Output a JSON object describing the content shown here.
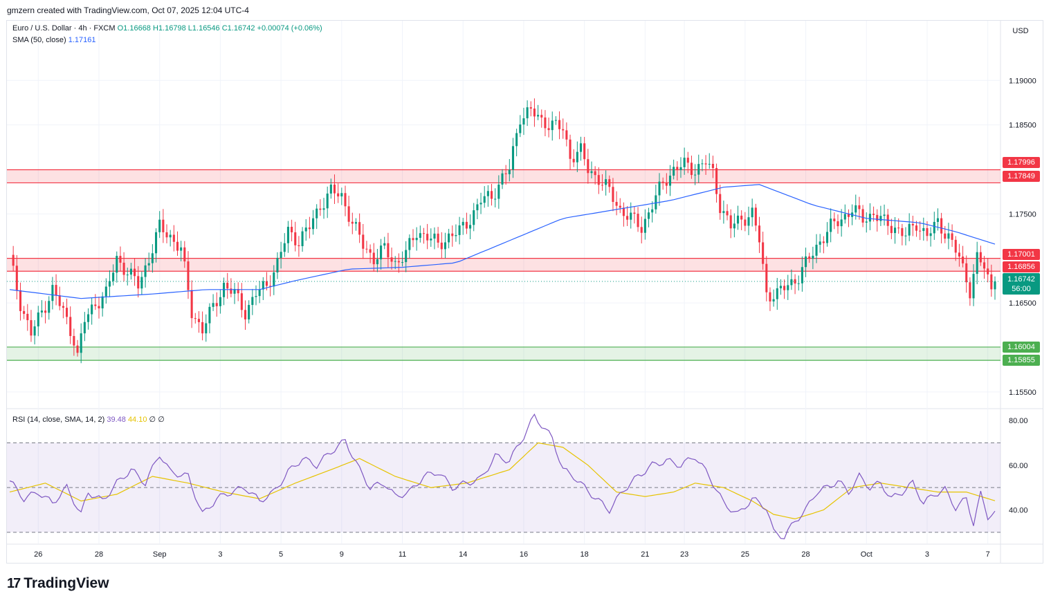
{
  "credit": "gmzern created with TradingView.com, Oct 07, 2025 12:04 UTC-4",
  "legend": {
    "symbol": "Euro / U.S. Dollar · 4h · FXCM",
    "open": "O1.16668",
    "high": "H1.16798",
    "low": "L1.16546",
    "close": "C1.16742",
    "change": "+0.00074 (+0.06%)",
    "sma_label": "SMA (50, close)",
    "sma_value": "1.17161",
    "rsi_label": "RSI (14, close, SMA, 14, 2)",
    "rsi_value": "39.48",
    "rsi_sma_value": "44.10",
    "rsi_extra1": "∅",
    "rsi_extra2": "∅"
  },
  "currency": "USD",
  "brand": {
    "logo": "17",
    "name": "TradingView"
  },
  "price_tags": {
    "r1_top": "1.17996",
    "r1_bot": "1.17849",
    "r2_top": "1.17001",
    "r2_bot": "1.16856",
    "last_price": "1.16742",
    "countdown": "56:00",
    "s_top": "1.16004",
    "s_bot": "1.15855"
  },
  "colors": {
    "up": "#089981",
    "down": "#f23645",
    "sma": "#2962ff",
    "rsi": "#7e57c2",
    "rsi_sma": "#e6c300",
    "resistance_zone": "#f23645",
    "support_zone": "#4caf50"
  },
  "chart_data": {
    "type": "candlestick",
    "symbol": "EURUSD",
    "timeframe": "4h",
    "y_axis": {
      "ticks": [
        "1.19000",
        "1.18500",
        "1.17500",
        "1.16500",
        "1.15500"
      ],
      "tick_values": [
        1.19,
        1.185,
        1.175,
        1.165,
        1.155
      ],
      "range": [
        1.1532,
        1.1967
      ]
    },
    "x_axis": {
      "labels": [
        "26",
        "28",
        "Sep",
        "3",
        "5",
        "9",
        "11",
        "14",
        "16",
        "18",
        "21",
        "23",
        "25",
        "28",
        "Oct",
        "3",
        "7"
      ],
      "label_bar_index": [
        8,
        25,
        42,
        59,
        76,
        93,
        110,
        127,
        144,
        161,
        178,
        189,
        206,
        223,
        240,
        257,
        274
      ],
      "bars_total": 277
    },
    "zones": [
      {
        "name": "resistance-upper",
        "top": 1.17996,
        "bottom": 1.17849,
        "color": "red"
      },
      {
        "name": "resistance-lower",
        "top": 1.17001,
        "bottom": 1.16856,
        "color": "red"
      },
      {
        "name": "support",
        "top": 1.16004,
        "bottom": 1.15855,
        "color": "green"
      }
    ],
    "last_price": 1.16742,
    "close_series_approx": [
      [
        0,
        1.17
      ],
      [
        3,
        1.165
      ],
      [
        6,
        1.1615
      ],
      [
        9,
        1.164
      ],
      [
        12,
        1.1665
      ],
      [
        15,
        1.164
      ],
      [
        18,
        1.161
      ],
      [
        19,
        1.159
      ],
      [
        21,
        1.163
      ],
      [
        24,
        1.165
      ],
      [
        27,
        1.166
      ],
      [
        30,
        1.17
      ],
      [
        33,
        1.1685
      ],
      [
        36,
        1.167
      ],
      [
        39,
        1.17
      ],
      [
        42,
        1.1735
      ],
      [
        45,
        1.1725
      ],
      [
        48,
        1.171
      ],
      [
        51,
        1.164
      ],
      [
        54,
        1.162
      ],
      [
        57,
        1.1645
      ],
      [
        60,
        1.167
      ],
      [
        63,
        1.166
      ],
      [
        66,
        1.164
      ],
      [
        69,
        1.166
      ],
      [
        72,
        1.167
      ],
      [
        75,
        1.1695
      ],
      [
        78,
        1.173
      ],
      [
        81,
        1.172
      ],
      [
        84,
        1.1735
      ],
      [
        87,
        1.176
      ],
      [
        90,
        1.1775
      ],
      [
        93,
        1.177
      ],
      [
        96,
        1.174
      ],
      [
        99,
        1.1715
      ],
      [
        102,
        1.17
      ],
      [
        105,
        1.171
      ],
      [
        108,
        1.1695
      ],
      [
        111,
        1.1705
      ],
      [
        114,
        1.173
      ],
      [
        117,
        1.1725
      ],
      [
        120,
        1.1715
      ],
      [
        123,
        1.1725
      ],
      [
        126,
        1.173
      ],
      [
        129,
        1.1745
      ],
      [
        132,
        1.1765
      ],
      [
        135,
        1.177
      ],
      [
        138,
        1.179
      ],
      [
        140,
        1.18
      ],
      [
        143,
        1.186
      ],
      [
        146,
        1.1865
      ],
      [
        149,
        1.1855
      ],
      [
        152,
        1.185
      ],
      [
        155,
        1.1845
      ],
      [
        157,
        1.1815
      ],
      [
        160,
        1.182
      ],
      [
        162,
        1.18
      ],
      [
        165,
        1.179
      ],
      [
        168,
        1.1775
      ],
      [
        171,
        1.1755
      ],
      [
        174,
        1.1745
      ],
      [
        177,
        1.1735
      ],
      [
        180,
        1.176
      ],
      [
        183,
        1.1785
      ],
      [
        186,
        1.18
      ],
      [
        189,
        1.1805
      ],
      [
        192,
        1.18
      ],
      [
        195,
        1.1808
      ],
      [
        197,
        1.1795
      ],
      [
        199,
        1.176
      ],
      [
        202,
        1.1735
      ],
      [
        205,
        1.1745
      ],
      [
        208,
        1.175
      ],
      [
        210,
        1.172
      ],
      [
        212,
        1.166
      ],
      [
        215,
        1.166
      ],
      [
        218,
        1.167
      ],
      [
        221,
        1.168
      ],
      [
        224,
        1.17
      ],
      [
        227,
        1.172
      ],
      [
        230,
        1.1735
      ],
      [
        233,
        1.1745
      ],
      [
        236,
        1.1755
      ],
      [
        239,
        1.1745
      ],
      [
        242,
        1.175
      ],
      [
        245,
        1.174
      ],
      [
        248,
        1.1735
      ],
      [
        251,
        1.1725
      ],
      [
        254,
        1.174
      ],
      [
        257,
        1.1725
      ],
      [
        260,
        1.174
      ],
      [
        263,
        1.1725
      ],
      [
        266,
        1.17
      ],
      [
        269,
        1.1665
      ],
      [
        271,
        1.17
      ],
      [
        273,
        1.169
      ],
      [
        275,
        1.1665
      ],
      [
        276,
        1.16742
      ]
    ],
    "sma_series_approx": [
      [
        0,
        1.1665
      ],
      [
        20,
        1.1655
      ],
      [
        40,
        1.166
      ],
      [
        55,
        1.1665
      ],
      [
        70,
        1.1665
      ],
      [
        80,
        1.1675
      ],
      [
        95,
        1.1688
      ],
      [
        110,
        1.169
      ],
      [
        125,
        1.1695
      ],
      [
        140,
        1.172
      ],
      [
        155,
        1.1745
      ],
      [
        170,
        1.1755
      ],
      [
        185,
        1.1765
      ],
      [
        200,
        1.178
      ],
      [
        210,
        1.1783
      ],
      [
        225,
        1.176
      ],
      [
        240,
        1.1745
      ],
      [
        255,
        1.174
      ],
      [
        265,
        1.173
      ],
      [
        276,
        1.1716
      ]
    ],
    "rsi": {
      "y_ticks": [
        "80.00",
        "60.00",
        "40.00"
      ],
      "tick_values": [
        80,
        60,
        40
      ],
      "range": [
        25,
        85
      ],
      "bands": {
        "upper": 70,
        "middle": 50,
        "lower": 30
      },
      "rsi_series_approx": [
        [
          0,
          53
        ],
        [
          4,
          45
        ],
        [
          8,
          48
        ],
        [
          12,
          43
        ],
        [
          16,
          50
        ],
        [
          20,
          38
        ],
        [
          22,
          48
        ],
        [
          26,
          44
        ],
        [
          30,
          52
        ],
        [
          34,
          58
        ],
        [
          38,
          52
        ],
        [
          42,
          65
        ],
        [
          45,
          57
        ],
        [
          50,
          55
        ],
        [
          54,
          38
        ],
        [
          58,
          45
        ],
        [
          62,
          48
        ],
        [
          66,
          50
        ],
        [
          70,
          44
        ],
        [
          74,
          48
        ],
        [
          78,
          57
        ],
        [
          82,
          63
        ],
        [
          86,
          60
        ],
        [
          90,
          66
        ],
        [
          94,
          71
        ],
        [
          98,
          58
        ],
        [
          101,
          50
        ],
        [
          105,
          52
        ],
        [
          108,
          46
        ],
        [
          112,
          48
        ],
        [
          116,
          55
        ],
        [
          120,
          57
        ],
        [
          124,
          50
        ],
        [
          128,
          52
        ],
        [
          132,
          54
        ],
        [
          136,
          64
        ],
        [
          140,
          62
        ],
        [
          144,
          73
        ],
        [
          147,
          82
        ],
        [
          150,
          76
        ],
        [
          152,
          72
        ],
        [
          155,
          58
        ],
        [
          158,
          55
        ],
        [
          161,
          50
        ],
        [
          165,
          44
        ],
        [
          168,
          40
        ],
        [
          172,
          49
        ],
        [
          176,
          55
        ],
        [
          180,
          60
        ],
        [
          184,
          62
        ],
        [
          188,
          60
        ],
        [
          192,
          64
        ],
        [
          196,
          55
        ],
        [
          200,
          43
        ],
        [
          204,
          38
        ],
        [
          208,
          45
        ],
        [
          212,
          41
        ],
        [
          214,
          30
        ],
        [
          217,
          28
        ],
        [
          220,
          35
        ],
        [
          223,
          40
        ],
        [
          226,
          48
        ],
        [
          229,
          50
        ],
        [
          232,
          53
        ],
        [
          235,
          48
        ],
        [
          238,
          55
        ],
        [
          241,
          50
        ],
        [
          244,
          52
        ],
        [
          247,
          45
        ],
        [
          250,
          48
        ],
        [
          253,
          52
        ],
        [
          256,
          43
        ],
        [
          259,
          47
        ],
        [
          262,
          49
        ],
        [
          265,
          41
        ],
        [
          268,
          45
        ],
        [
          270,
          34
        ],
        [
          272,
          47
        ],
        [
          274,
          37
        ],
        [
          276,
          39.48
        ]
      ],
      "rsi_sma_series_approx": [
        [
          0,
          48
        ],
        [
          10,
          52
        ],
        [
          20,
          44
        ],
        [
          30,
          47
        ],
        [
          40,
          55
        ],
        [
          50,
          52
        ],
        [
          60,
          48
        ],
        [
          70,
          45
        ],
        [
          80,
          52
        ],
        [
          90,
          58
        ],
        [
          98,
          63
        ],
        [
          108,
          55
        ],
        [
          118,
          50
        ],
        [
          128,
          52
        ],
        [
          140,
          58
        ],
        [
          148,
          70
        ],
        [
          155,
          68
        ],
        [
          162,
          60
        ],
        [
          170,
          48
        ],
        [
          178,
          46
        ],
        [
          186,
          48
        ],
        [
          192,
          52
        ],
        [
          200,
          50
        ],
        [
          208,
          44
        ],
        [
          214,
          38
        ],
        [
          220,
          36
        ],
        [
          228,
          40
        ],
        [
          236,
          50
        ],
        [
          244,
          52
        ],
        [
          252,
          50
        ],
        [
          260,
          48
        ],
        [
          268,
          48
        ],
        [
          276,
          44.1
        ]
      ]
    }
  }
}
